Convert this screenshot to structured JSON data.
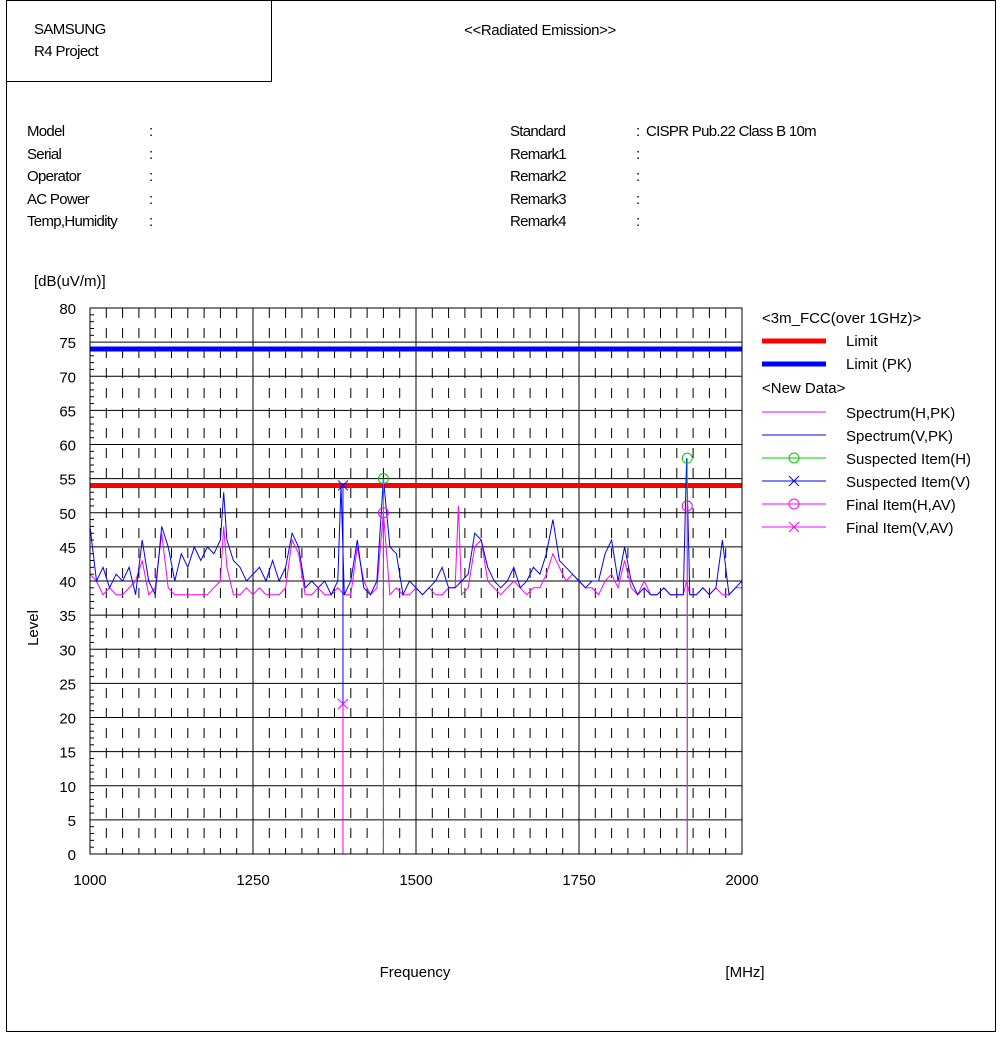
{
  "header": {
    "company": "SAMSUNG",
    "project": "R4 Project",
    "title": "<<Radiated Emission>>"
  },
  "info_left": [
    {
      "label": "Model",
      "value": ""
    },
    {
      "label": "Serial",
      "value": ""
    },
    {
      "label": "Operator",
      "value": ""
    },
    {
      "label": "AC Power",
      "value": ""
    },
    {
      "label": "Temp,Humidity",
      "value": ""
    }
  ],
  "info_right": [
    {
      "label": "Standard",
      "value": "CISPR Pub.22 Class B 10m"
    },
    {
      "label": "Remark1",
      "value": ""
    },
    {
      "label": "Remark2",
      "value": ""
    },
    {
      "label": "Remark3",
      "value": ""
    },
    {
      "label": "Remark4",
      "value": ""
    }
  ],
  "colors": {
    "limit": "#ff0000",
    "limit_pk": "#0000ff",
    "spectrum_h": "#ff00ff",
    "spectrum_v": "#0000ff",
    "suspected_h": "#00cc00",
    "suspected_v": "#0000ff",
    "final_h": "#ff00ff",
    "final_v": "#ff00ff"
  },
  "chart_data": {
    "type": "line",
    "ylabel": "Level",
    "yunit": "[dB(uV/m)]",
    "xlabel": "Frequency",
    "xunit": "[MHz]",
    "xlim": [
      1000,
      2000
    ],
    "ylim": [
      0,
      80
    ],
    "xticks": [
      1000,
      1250,
      1500,
      1750,
      2000
    ],
    "yticks": [
      0,
      5,
      10,
      15,
      20,
      25,
      30,
      35,
      40,
      45,
      50,
      55,
      60,
      65,
      70,
      75,
      80
    ],
    "grid": true,
    "legend": {
      "position": "right",
      "group1": "<3m_FCC(over 1GHz)>",
      "group2": "<New Data>",
      "entries": [
        "Limit",
        "Limit (PK)",
        "Spectrum(H,PK)",
        "Spectrum(V,PK)",
        "Suspected Item(H)",
        "Suspected Item(V)",
        "Final Item(H,AV)",
        "Final Item(V,AV)"
      ]
    },
    "limits": [
      {
        "name": "Limit",
        "value": 54
      },
      {
        "name": "Limit (PK)",
        "value": 74
      }
    ],
    "series": [
      {
        "name": "Spectrum(H,PK)",
        "x": [
          1000,
          1010,
          1020,
          1030,
          1040,
          1050,
          1060,
          1070,
          1080,
          1090,
          1100,
          1110,
          1120,
          1130,
          1140,
          1150,
          1160,
          1170,
          1180,
          1190,
          1200,
          1205,
          1210,
          1220,
          1230,
          1240,
          1250,
          1260,
          1270,
          1280,
          1290,
          1300,
          1310,
          1320,
          1330,
          1340,
          1350,
          1360,
          1370,
          1380,
          1390,
          1400,
          1410,
          1420,
          1430,
          1440,
          1450,
          1460,
          1470,
          1480,
          1490,
          1500,
          1510,
          1520,
          1530,
          1540,
          1550,
          1560,
          1565,
          1570,
          1580,
          1590,
          1600,
          1610,
          1620,
          1630,
          1640,
          1650,
          1660,
          1670,
          1680,
          1690,
          1700,
          1710,
          1720,
          1730,
          1740,
          1750,
          1760,
          1770,
          1780,
          1790,
          1800,
          1810,
          1820,
          1830,
          1840,
          1850,
          1860,
          1870,
          1880,
          1890,
          1900,
          1910,
          1915,
          1920,
          1930,
          1940,
          1950,
          1960,
          1970,
          1980,
          1990,
          2000
        ],
        "values": [
          41,
          40,
          38,
          39,
          38,
          38,
          39,
          40,
          43,
          38,
          39,
          47,
          39,
          38,
          38,
          38,
          38,
          38,
          38,
          39,
          40,
          48,
          42,
          38,
          38,
          39,
          38,
          39,
          38,
          38,
          38,
          39,
          46,
          44,
          38,
          38,
          39,
          38,
          38,
          39,
          38,
          38,
          45,
          40,
          38,
          39,
          50,
          38,
          39,
          38,
          38,
          39,
          38,
          39,
          38,
          38,
          39,
          39,
          51,
          38,
          39,
          45,
          46,
          40,
          39,
          38,
          39,
          40,
          39,
          38,
          39,
          39,
          41,
          44,
          42,
          40,
          41,
          40,
          39,
          39,
          38,
          40,
          41,
          39,
          43,
          39,
          38,
          40,
          38,
          38,
          39,
          38,
          38,
          38,
          40,
          38,
          38,
          39,
          38,
          39,
          38,
          38,
          39,
          39
        ]
      },
      {
        "name": "Spectrum(V,PK)",
        "x": [
          1000,
          1010,
          1020,
          1030,
          1040,
          1050,
          1060,
          1070,
          1080,
          1090,
          1100,
          1110,
          1120,
          1130,
          1140,
          1150,
          1160,
          1170,
          1180,
          1190,
          1200,
          1205,
          1210,
          1220,
          1230,
          1240,
          1250,
          1260,
          1270,
          1280,
          1290,
          1300,
          1310,
          1320,
          1330,
          1340,
          1350,
          1360,
          1370,
          1380,
          1385,
          1390,
          1400,
          1410,
          1420,
          1430,
          1440,
          1450,
          1460,
          1470,
          1480,
          1490,
          1500,
          1510,
          1520,
          1530,
          1540,
          1550,
          1560,
          1570,
          1580,
          1590,
          1600,
          1610,
          1620,
          1630,
          1640,
          1650,
          1660,
          1670,
          1680,
          1690,
          1700,
          1710,
          1720,
          1730,
          1740,
          1750,
          1760,
          1770,
          1780,
          1790,
          1800,
          1810,
          1820,
          1830,
          1840,
          1850,
          1860,
          1870,
          1880,
          1890,
          1900,
          1910,
          1915,
          1920,
          1930,
          1940,
          1950,
          1960,
          1970,
          1980,
          1990,
          2000
        ],
        "values": [
          48,
          40,
          42,
          39,
          41,
          40,
          42,
          38,
          46,
          40,
          38,
          48,
          45,
          40,
          44,
          42,
          45,
          43,
          45,
          44,
          46,
          53,
          46,
          43,
          42,
          40,
          41,
          42,
          40,
          43,
          40,
          42,
          47,
          45,
          39,
          40,
          39,
          40,
          38,
          40,
          54,
          38,
          40,
          46,
          39,
          38,
          40,
          55,
          45,
          44,
          38,
          40,
          39,
          38,
          39,
          40,
          42,
          39,
          39,
          40,
          41,
          47,
          46,
          42,
          40,
          39,
          40,
          42,
          39,
          40,
          42,
          41,
          44,
          49,
          43,
          42,
          41,
          40,
          39,
          40,
          40,
          44,
          46,
          40,
          45,
          40,
          38,
          39,
          38,
          38,
          39,
          38,
          38,
          38,
          58,
          38,
          38,
          39,
          38,
          39,
          46,
          38,
          39,
          40
        ]
      },
      {
        "name": "Suspected Item(H)",
        "points": [
          {
            "x": 1450,
            "y": 55
          },
          {
            "x": 1916,
            "y": 58
          }
        ]
      },
      {
        "name": "Suspected Item(V)",
        "points": [
          {
            "x": 1388,
            "y": 54
          }
        ]
      },
      {
        "name": "Final Item(H,AV)",
        "points": [
          {
            "x": 1450,
            "y": 50
          },
          {
            "x": 1916,
            "y": 51
          }
        ]
      },
      {
        "name": "Final Item(V,AV)",
        "points": [
          {
            "x": 1388,
            "y": 22
          }
        ]
      }
    ]
  }
}
